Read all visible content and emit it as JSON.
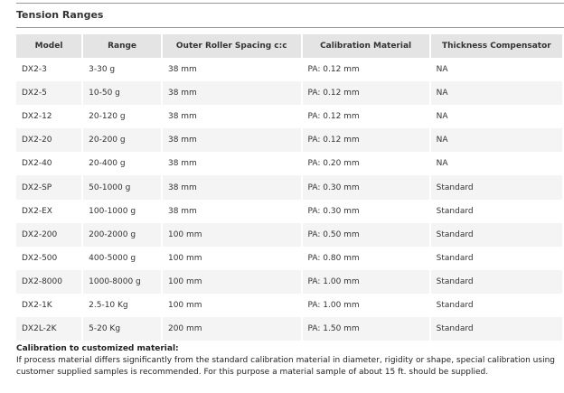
{
  "title": "Tension Ranges",
  "table": {
    "headers": [
      "Model",
      "Range",
      "Outer Roller Spacing c:c",
      "Calibration Material",
      "Thickness Compensator"
    ],
    "rows": [
      [
        "DX2-3",
        "3-30 g",
        "38 mm",
        "PA: 0.12 mm",
        "NA"
      ],
      [
        "DX2-5",
        "10-50 g",
        "38 mm",
        "PA: 0.12 mm",
        "NA"
      ],
      [
        "DX2-12",
        "20-120 g",
        "38 mm",
        "PA: 0.12 mm",
        "NA"
      ],
      [
        "DX2-20",
        "20-200 g",
        "38 mm",
        "PA: 0.12 mm",
        "NA"
      ],
      [
        "DX2-40",
        "20-400 g",
        "38 mm",
        "PA: 0.20 mm",
        "NA"
      ],
      [
        "DX2-SP",
        "50-1000 g",
        "38 mm",
        "PA: 0.30 mm",
        "Standard"
      ],
      [
        "DX2-EX",
        "100-1000 g",
        "38 mm",
        "PA: 0.30 mm",
        "Standard"
      ],
      [
        "DX2-200",
        "200-2000 g",
        "100 mm",
        "PA: 0.50 mm",
        "Standard"
      ],
      [
        "DX2-500",
        "400-5000 g",
        "100 mm",
        "PA: 0.80 mm",
        "Standard"
      ],
      [
        "DX2-8000",
        "1000-8000 g",
        "100 mm",
        "PA: 1.00 mm",
        "Standard"
      ],
      [
        "DX2-1K",
        "2.5-10 Kg",
        "100 mm",
        "PA: 1.00 mm",
        "Standard"
      ],
      [
        "DX2L-2K",
        "5-20 Kg",
        "200 mm",
        "PA: 1.50 mm",
        "Standard"
      ]
    ]
  },
  "note": {
    "heading": "Calibration to customized material:",
    "text": "If process material differs significantly from the standard calibration material in diameter, rigidity or shape, special calibration using customer supplied samples is recommended. For this purpose a material sample of about 15 ft. should be supplied."
  }
}
